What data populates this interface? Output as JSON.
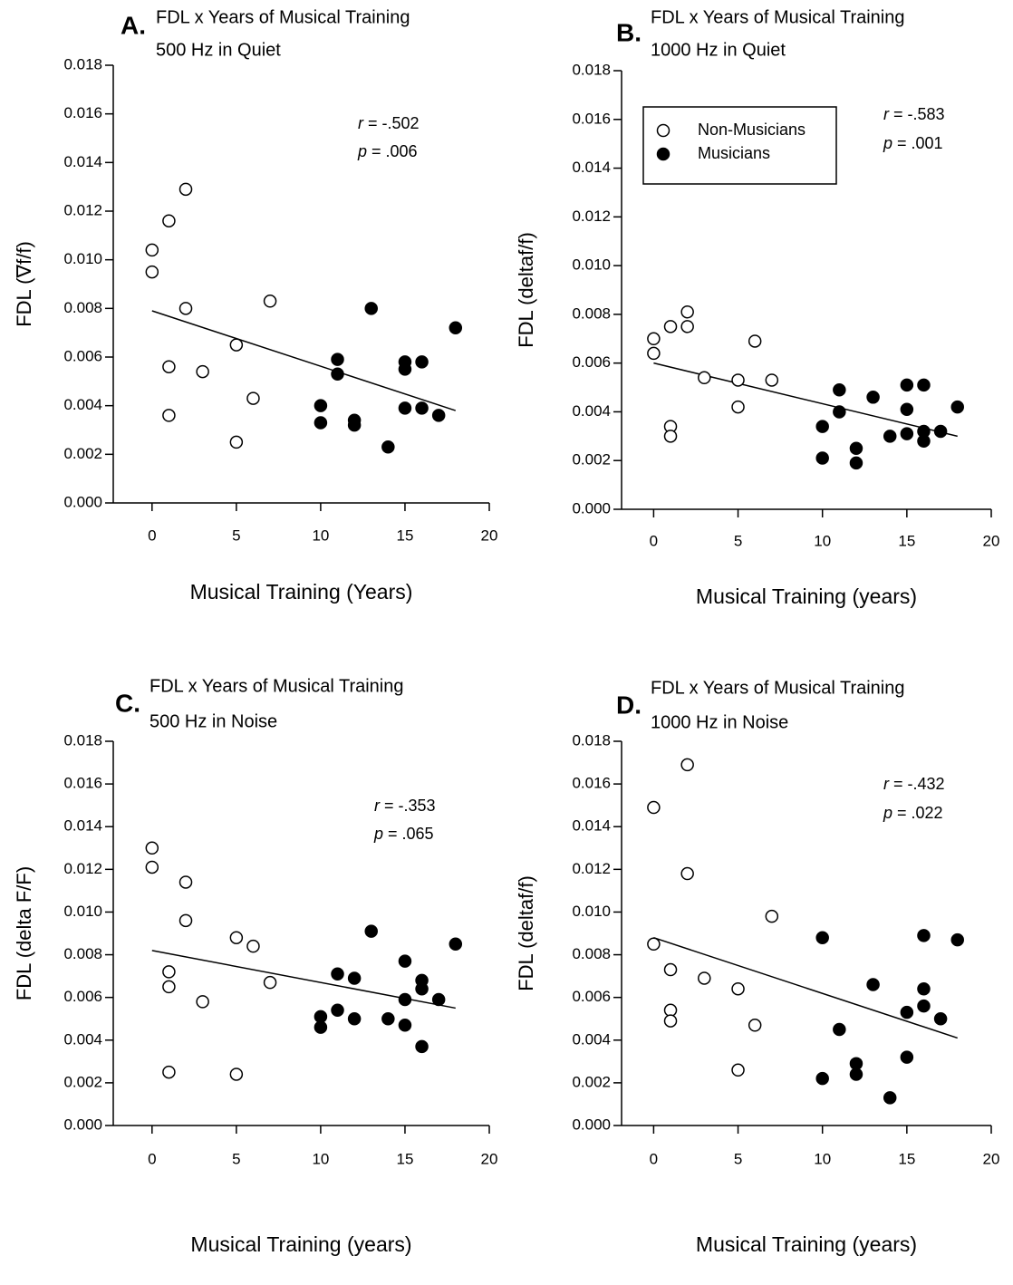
{
  "chart_data": [
    {
      "type": "scatter",
      "panel": "A.",
      "title": "FDL x Years of Musical Training",
      "subtitle": "500 Hz in Quiet",
      "x_label": "Musical Training (Years)",
      "y_label": "FDL (∇f/f)",
      "xlim": [
        -2.3,
        20
      ],
      "ylim": [
        0,
        0.018
      ],
      "xticks": [
        0,
        5,
        10,
        15,
        20
      ],
      "yticks": [
        {
          "value": 0,
          "label": "0.000"
        },
        {
          "value": 0.002,
          "label": "0.002"
        },
        {
          "value": 0.004,
          "label": "0.004"
        },
        {
          "value": 0.006,
          "label": "0.006"
        },
        {
          "value": 0.008,
          "label": "0.008"
        },
        {
          "value": 0.01,
          "label": "0.010"
        },
        {
          "value": 0.012,
          "label": "0.012"
        },
        {
          "value": 0.014,
          "label": "0.014"
        },
        {
          "value": 0.016,
          "label": "0.016"
        },
        {
          "value": 0.018,
          "label": "0.018"
        }
      ],
      "stats": [
        {
          "symbol": "r",
          "text": " = -.502"
        },
        {
          "symbol": "p",
          "text": " = .006"
        }
      ],
      "series": [
        {
          "color": "#ffffff",
          "x": [
            0,
            0,
            1,
            2,
            2,
            1,
            1,
            3,
            5,
            5,
            6,
            7
          ],
          "y": [
            0.0104,
            0.0095,
            0.0116,
            0.0129,
            0.008,
            0.0056,
            0.0036,
            0.0054,
            0.0065,
            0.0025,
            0.0043,
            0.0083
          ]
        },
        {
          "color": "#000000",
          "x": [
            10,
            10,
            11,
            11,
            12,
            12,
            13,
            14,
            15,
            15,
            15,
            16,
            16,
            17,
            18
          ],
          "y": [
            0.004,
            0.0033,
            0.0059,
            0.0053,
            0.0034,
            0.0032,
            0.008,
            0.0023,
            0.0058,
            0.0055,
            0.0039,
            0.0058,
            0.0039,
            0.0036,
            0.0072
          ]
        }
      ],
      "fit": {
        "x": [
          0,
          18
        ],
        "y": [
          0.0079,
          0.0038
        ]
      }
    },
    {
      "type": "scatter",
      "panel": "B.",
      "title": "FDL x Years of Musical Training",
      "subtitle": "1000 Hz in Quiet",
      "x_label": "Musical Training (years)",
      "y_label": "FDL (deltaf/f)",
      "xlim": [
        -1.9,
        20
      ],
      "ylim": [
        0,
        0.018
      ],
      "xticks": [
        0,
        5,
        10,
        15,
        20
      ],
      "yticks": [
        {
          "value": 0,
          "label": "0.000"
        },
        {
          "value": 0.002,
          "label": "0.002"
        },
        {
          "value": 0.004,
          "label": "0.004"
        },
        {
          "value": 0.006,
          "label": "0.006"
        },
        {
          "value": 0.008,
          "label": "0.008"
        },
        {
          "value": 0.01,
          "label": "0.010"
        },
        {
          "value": 0.012,
          "label": "0.012"
        },
        {
          "value": 0.014,
          "label": "0.014"
        },
        {
          "value": 0.016,
          "label": "0.016"
        },
        {
          "value": 0.018,
          "label": "0.018"
        }
      ],
      "stats": [
        {
          "symbol": "r",
          "text": " = -.583"
        },
        {
          "symbol": "p",
          "text": " = .001"
        }
      ],
      "legend": "upper left",
      "series": [
        {
          "name": "Non-Musicians",
          "color": "#ffffff",
          "x": [
            0,
            0,
            1,
            2,
            2,
            1,
            1,
            3,
            5,
            5,
            6,
            7
          ],
          "y": [
            0.007,
            0.0064,
            0.0075,
            0.0081,
            0.0075,
            0.0034,
            0.003,
            0.0054,
            0.0053,
            0.0042,
            0.0069,
            0.0053
          ]
        },
        {
          "name": "Musicians",
          "color": "#000000",
          "x": [
            10,
            10,
            11,
            11,
            12,
            12,
            13,
            14,
            15,
            15,
            15,
            16,
            16,
            16,
            17,
            18
          ],
          "y": [
            0.0034,
            0.0021,
            0.0049,
            0.004,
            0.0025,
            0.0019,
            0.0046,
            0.003,
            0.0051,
            0.0041,
            0.0031,
            0.0051,
            0.0032,
            0.0028,
            0.0032,
            0.0042
          ]
        }
      ],
      "fit": {
        "x": [
          0,
          18
        ],
        "y": [
          0.006,
          0.003
        ]
      }
    },
    {
      "type": "scatter",
      "panel": "C.",
      "title": "FDL x Years of Musical Training",
      "subtitle": "500 Hz in Noise",
      "x_label": "Musical Training (years)",
      "y_label": "FDL (delta F/F)",
      "xlim": [
        -2.3,
        20
      ],
      "ylim": [
        0,
        0.018
      ],
      "xticks": [
        0,
        5,
        10,
        15,
        20
      ],
      "yticks": [
        {
          "value": 0,
          "label": "0.000"
        },
        {
          "value": 0.002,
          "label": "0.002"
        },
        {
          "value": 0.004,
          "label": "0.004"
        },
        {
          "value": 0.006,
          "label": "0.006"
        },
        {
          "value": 0.008,
          "label": "0.008"
        },
        {
          "value": 0.01,
          "label": "0.010"
        },
        {
          "value": 0.012,
          "label": "0.012"
        },
        {
          "value": 0.014,
          "label": "0.014"
        },
        {
          "value": 0.016,
          "label": "0.016"
        },
        {
          "value": 0.018,
          "label": "0.018"
        }
      ],
      "stats": [
        {
          "symbol": "r",
          "text": " = -.353"
        },
        {
          "symbol": "p",
          "text": " = .065"
        }
      ],
      "series": [
        {
          "color": "#ffffff",
          "x": [
            0,
            0,
            1,
            1,
            1,
            2,
            2,
            3,
            5,
            5,
            6,
            7
          ],
          "y": [
            0.013,
            0.0121,
            0.0072,
            0.0065,
            0.0025,
            0.0114,
            0.0096,
            0.0058,
            0.0088,
            0.0024,
            0.0084,
            0.0067
          ]
        },
        {
          "color": "#000000",
          "x": [
            10,
            10,
            11,
            11,
            12,
            12,
            13,
            14,
            15,
            15,
            15,
            16,
            16,
            16,
            17,
            18
          ],
          "y": [
            0.0051,
            0.0046,
            0.0071,
            0.0054,
            0.0069,
            0.005,
            0.0091,
            0.005,
            0.0077,
            0.0059,
            0.0047,
            0.0068,
            0.0064,
            0.0037,
            0.0059,
            0.0085
          ]
        }
      ],
      "fit": {
        "x": [
          0,
          18
        ],
        "y": [
          0.0082,
          0.0055
        ]
      }
    },
    {
      "type": "scatter",
      "panel": "D.",
      "title": "FDL x Years of Musical Training",
      "subtitle": "1000 Hz in Noise",
      "x_label": "Musical Training (years)",
      "y_label": "FDL (deltaf/f)",
      "xlim": [
        -1.9,
        20
      ],
      "ylim": [
        0,
        0.018
      ],
      "xticks": [
        0,
        5,
        10,
        15,
        20
      ],
      "yticks": [
        {
          "value": 0,
          "label": "0.000"
        },
        {
          "value": 0.002,
          "label": "0.002"
        },
        {
          "value": 0.004,
          "label": "0.004"
        },
        {
          "value": 0.006,
          "label": "0.006"
        },
        {
          "value": 0.008,
          "label": "0.008"
        },
        {
          "value": 0.01,
          "label": "0.010"
        },
        {
          "value": 0.012,
          "label": "0.012"
        },
        {
          "value": 0.014,
          "label": "0.014"
        },
        {
          "value": 0.016,
          "label": "0.016"
        },
        {
          "value": 0.018,
          "label": "0.018"
        }
      ],
      "stats": [
        {
          "symbol": "r",
          "text": " = -.432"
        },
        {
          "symbol": "p",
          "text": " = .022"
        }
      ],
      "series": [
        {
          "color": "#ffffff",
          "x": [
            0,
            0,
            1,
            1,
            1,
            2,
            2,
            3,
            5,
            5,
            6,
            7
          ],
          "y": [
            0.0149,
            0.0085,
            0.0073,
            0.0054,
            0.0049,
            0.0169,
            0.0118,
            0.0069,
            0.0064,
            0.0026,
            0.0047,
            0.0098
          ]
        },
        {
          "color": "#000000",
          "x": [
            10,
            10,
            11,
            12,
            12,
            13,
            14,
            15,
            15,
            16,
            16,
            16,
            17,
            18
          ],
          "y": [
            0.0088,
            0.0022,
            0.0045,
            0.0029,
            0.0024,
            0.0066,
            0.0013,
            0.0053,
            0.0032,
            0.0089,
            0.0064,
            0.0056,
            0.005,
            0.0087
          ]
        }
      ],
      "fit": {
        "x": [
          0,
          18
        ],
        "y": [
          0.0088,
          0.0041
        ]
      }
    }
  ]
}
